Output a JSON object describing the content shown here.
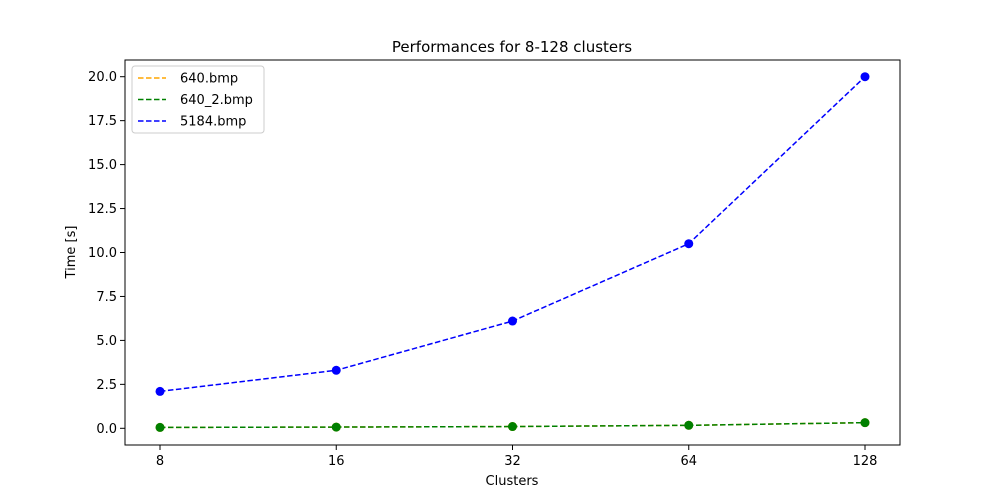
{
  "chart_data": {
    "type": "line",
    "title": "Performances for 8-128 clusters",
    "xlabel": "Clusters",
    "ylabel": "Time [s]",
    "x": [
      8,
      16,
      32,
      64,
      128
    ],
    "x_tick_labels": [
      "8",
      "16",
      "32",
      "64",
      "128"
    ],
    "x_scale": "log2",
    "y_ticks": [
      "0.0",
      "2.5",
      "5.0",
      "7.5",
      "10.0",
      "12.5",
      "15.0",
      "17.5",
      "20.0"
    ],
    "ylim": [
      -0.95,
      20.95
    ],
    "grid": false,
    "legend_position": "top-left",
    "series": [
      {
        "name": "640.bmp",
        "color": "#FFA500",
        "values": [
          0.05,
          0.07,
          0.1,
          0.17,
          0.32
        ]
      },
      {
        "name": "640_2.bmp",
        "color": "#008000",
        "values": [
          0.05,
          0.07,
          0.1,
          0.17,
          0.32
        ]
      },
      {
        "name": "5184.bmp",
        "color": "#0000FF",
        "values": [
          2.1,
          3.3,
          6.1,
          10.5,
          20.0
        ]
      }
    ]
  }
}
